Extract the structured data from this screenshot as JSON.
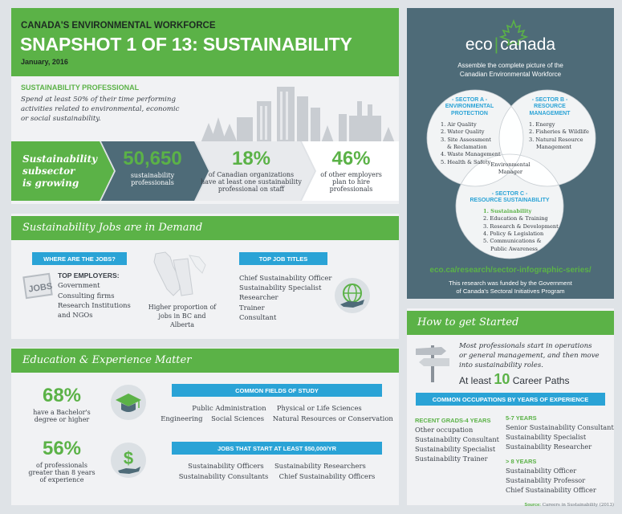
{
  "header": {
    "subtitle": "CANADA'S ENVIRONMENTAL WORKFORCE",
    "title": "SNAPSHOT 1 OF 13: SUSTAINABILITY",
    "date": "January, 2016"
  },
  "intro": {
    "label": "SUSTAINABILITY PROFESSIONAL",
    "text_line1": "Spend at least 50% of their time performing",
    "text_line2": "activities related to environmental, economic",
    "text_line3": "or social sustainability."
  },
  "growing": {
    "label_line1": "Sustainability",
    "label_line2": "subsector",
    "label_line3": "is growing",
    "stat1_value": "50,650",
    "stat1_line1": "sustainability",
    "stat1_line2": "professionals",
    "stat2_value": "18%",
    "stat2_line1": "of Canadian organizations",
    "stat2_line2": "have at least one sustainability",
    "stat2_line3": "professional on staff",
    "stat3_value": "46%",
    "stat3_line1": "of other employers",
    "stat3_line2": "plan to hire",
    "stat3_line3": "professionals"
  },
  "jobs": {
    "heading": "Sustainability Jobs are in Demand",
    "where_tag": "WHERE ARE THE JOBS?",
    "jobs_icon_text": "JOBS",
    "top_employers_label": "TOP EMPLOYERS:",
    "employers": [
      "Government",
      "Consulting firms",
      "Research Institutions",
      "and NGOs"
    ],
    "map_line1": "Higher proportion of",
    "map_line2": "jobs in BC and Alberta",
    "titles_tag": "TOP JOB TITLES",
    "titles": [
      "Chief Sustainability Officer",
      "Sustainability Specialist",
      "Researcher",
      "Trainer",
      "Consultant"
    ]
  },
  "education": {
    "heading": "Education & Experience Matter",
    "stat1_value": "68%",
    "stat1_line1": "have a Bachelor's",
    "stat1_line2": "degree or higher",
    "stat2_value": "56%",
    "stat2_line1": "of professionals",
    "stat2_line2": "greater than 8 years",
    "stat2_line3": "of experience",
    "fields_tag": "COMMON FIELDS OF STUDY",
    "fields_row1": [
      "Public Administration",
      "Physical or Life Sciences"
    ],
    "fields_row2": [
      "Engineering",
      "Social Sciences",
      "Natural Resources or Conservation"
    ],
    "jobs50_tag": "JOBS THAT START AT LEAST $50,000/YR",
    "jobs50_row1": [
      "Sustainability Officers",
      "Sustainability Researchers"
    ],
    "jobs50_row2": [
      "Sustainability Consultants",
      "Chief Sustainability Officers"
    ]
  },
  "eco": {
    "logo_left": "eco",
    "logo_right": "canada",
    "tagline1": "Assemble the complete picture of the",
    "tagline2": "Canadian Environmental Workforce",
    "sector_a_label": "- SECTOR A -",
    "sector_a_name1": "ENVIRONMENTAL",
    "sector_a_name2": "PROTECTION",
    "sector_a_items": [
      "1. Air Quality",
      "2. Water Quality",
      "3. Site Assessment",
      "   & Reclamation",
      "4. Waste Management",
      "5. Health & Safety"
    ],
    "sector_b_label": "- SECTOR B -",
    "sector_b_name1": "RESOURCE",
    "sector_b_name2": "MANAGEMENT",
    "sector_b_items": [
      "1. Energy",
      "2. Fisheries & Wildlife",
      "3. Natural Resource",
      "   Management"
    ],
    "sector_c_label": "- SECTOR C -",
    "sector_c_name": "RESOURCE SUSTAINABILITY",
    "sector_c_items": [
      "1. Sustainability",
      "2. Education & Training",
      "3. Research & Development",
      "4. Policy & Legislation",
      "5. Communications &",
      "   Public Awareness"
    ],
    "center_line1": "Environmental",
    "center_line2": "Manager",
    "url": "eco.ca/research/sector-infographic-series/",
    "funded1": "This research was funded by the Government",
    "funded2": "of Canada's Sectoral Initiatives Program"
  },
  "started": {
    "heading": "How to get Started",
    "text1": "Most professionals start in operations",
    "text2": "or general management, and then move",
    "text3": "into sustainability roles.",
    "paths_prefix": "At least",
    "paths_num": "10",
    "paths_suffix": "Career Paths",
    "occ_tag": "COMMON OCCUPATIONS BY YEARS OF EXPERIENCE",
    "col1_head": "RECENT GRADS-4 YEARS",
    "col1": [
      "Other occupation",
      "Sustainability Consultant",
      "Sustainability Specialist",
      "Sustainability Trainer"
    ],
    "col2_head": "5-7 YEARS",
    "col2": [
      "Senior Sustainability Consultant",
      "Sustainability Specialist",
      "Sustainability Researcher"
    ],
    "col3_head": "> 8 YEARS",
    "col3": [
      "Sustainability Officer",
      "Sustainability Professor",
      "Chief Sustainability Officer"
    ],
    "source_label": "Source:",
    "source_text": "Careers in Sustainability (2013)"
  },
  "colors": {
    "green": "#5bb247",
    "teal": "#2aa3d6",
    "slate": "#4e6b78",
    "dark_slate": "#3e5a67"
  },
  "icons": [
    "city-skyline-icon",
    "jobs-newspaper-icon",
    "canada-map-icon",
    "globe-hand-icon",
    "graduation-cap-icon",
    "dollar-hand-icon",
    "signpost-icon",
    "maple-leaf-icon"
  ]
}
